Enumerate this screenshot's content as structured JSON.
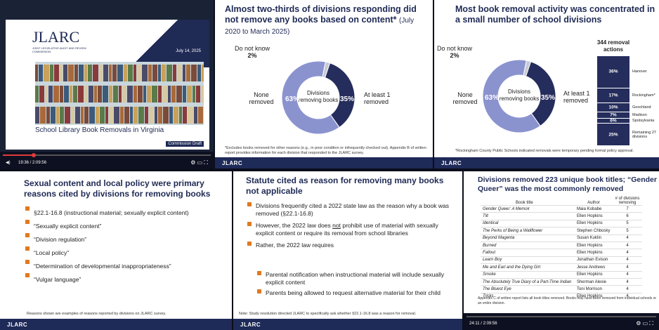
{
  "tile1": {
    "logo": "JLARC",
    "logo_sub": "JOINT LEGISLATIVE AUDIT AND REVIEW COMMISSION",
    "date": "July 14, 2025",
    "title": "School Library Book Removals in Virginia",
    "badge": "Commission Draft",
    "time": "19:36 / 2:09:56",
    "progress": 0.15
  },
  "tile2": {
    "title": "Almost two-thirds of divisions responding did not remove any books based on content*",
    "subtitle": "(July 2020 to March 2025)",
    "center": "Divisions removing books",
    "dk_label": "Do not know",
    "dk_pct": "2%",
    "none_label": "None removed",
    "none_pct": "63%",
    "rem_label": "At least 1 removed",
    "rem_pct": "35%",
    "footnote": "*Excludes books removed for other reasons (e.g., in poor condition or infrequently checked out). Appendix B of written report provides information for each division that responded to the JLARC survey.",
    "jlarc": "JLARC"
  },
  "tile3": {
    "title": "Most book removal activity was concentrated in a small number of school divisions",
    "center": "Divisions removing books",
    "dk_label": "Do not know",
    "dk_pct": "2%",
    "none_label": "None removed",
    "none_pct": "63%",
    "rem_label": "At least 1 removed",
    "rem_pct": "35%",
    "total": "344 removal actions",
    "stack": [
      {
        "pct": "36%",
        "label": "Hanover",
        "value": 36
      },
      {
        "pct": "17%",
        "label": "Rockingham*",
        "value": 17
      },
      {
        "pct": "10%",
        "label": "Goochland",
        "value": 10
      },
      {
        "pct": "7%",
        "label": "Madison",
        "value": 7
      },
      {
        "pct": "6%",
        "label": "Spotsylvania",
        "value": 6
      },
      {
        "pct": "25%",
        "label": "Remaining 27 divisions",
        "value": 25
      }
    ],
    "footnote": "*Rockingham County Public Schools indicated removals were temporary pending formal policy approval.",
    "jlarc": "JLARC"
  },
  "tile4": {
    "title": "Sexual content and local policy were primary reasons cited by divisions for removing books",
    "items": [
      "§22.1-16.8 (instructional material; sexually explicit content)",
      "“Sexually explicit content”",
      "“Division regulation”",
      "“Local policy”",
      "“Determination of developmental inappropriateness”",
      "“Vulgar language”"
    ],
    "footnote": "Reasons shown are examples of reasons reported by divisions on JLARC survey.",
    "jlarc": "JLARC"
  },
  "tile5": {
    "title": "Statute cited as reason for removing many books not applicable",
    "b1": "Divisions frequently cited a 2022 state law as the reason why a book was removed (§22.1-16.8)",
    "b2_pre": "However, the 2022 law does ",
    "b2_not": "not",
    "b2_post": " prohibit use of material with sexually explicit content or require its removal from school libraries",
    "b3": "Rather, the 2022 law requires",
    "sub1": "Parental notification when instructional material will include sexually explicit content",
    "sub2": "Parents being allowed to request alternative material for their child",
    "footnote": "Note: Study resolution directed JLARC to specifically ask whether §22.1-16.8 was a reason for removal.",
    "jlarc": "JLARC"
  },
  "tile6": {
    "title": "Divisions removed 223 unique book titles; “Gender Queer” was the most commonly removed",
    "columns": [
      "Book title",
      "Author",
      "# of divisions removing"
    ],
    "rows": [
      [
        "Gender Queer: A Memoir",
        "Maia Kobabe",
        "7"
      ],
      [
        "Tilt",
        "Ellen Hopkins",
        "6"
      ],
      [
        "Identical",
        "Ellen Hopkins",
        "5"
      ],
      [
        "The Perks of Being a Wallflower",
        "Stephen Chbosky",
        "5"
      ],
      [
        "Beyond Magenta",
        "Susan Kuklin",
        "4"
      ],
      [
        "Burned",
        "Ellen Hopkins",
        "4"
      ],
      [
        "Fallout",
        "Ellen Hopkins",
        "4"
      ],
      [
        "Learn Boy",
        "Jonathan Evison",
        "4"
      ],
      [
        "Me and Earl and the Dying Girl",
        "Jesse Andrews",
        "4"
      ],
      [
        "Smoke",
        "Ellen Hopkins",
        "4"
      ],
      [
        "The Absolutely True Diary of a Part-Time Indian",
        "Sherman Alexie",
        "4"
      ],
      [
        "The Bluest Eye",
        "Toni Morrison",
        "4"
      ],
      [
        "Tricks",
        "Ellen Hopkins",
        "4"
      ]
    ],
    "footnote": "Appendix C of written report lists all book titles removed. Books may have been removed from individual schools or an entire division.",
    "time": "24:11 / 2:09:56",
    "jlarc": "JLARC"
  },
  "colors": {
    "navy": "#1f2a55",
    "donut_light": "#8b93cf",
    "donut_dark": "#252d5c",
    "accent": "#e07a1f",
    "progress": "#e03b3b"
  }
}
